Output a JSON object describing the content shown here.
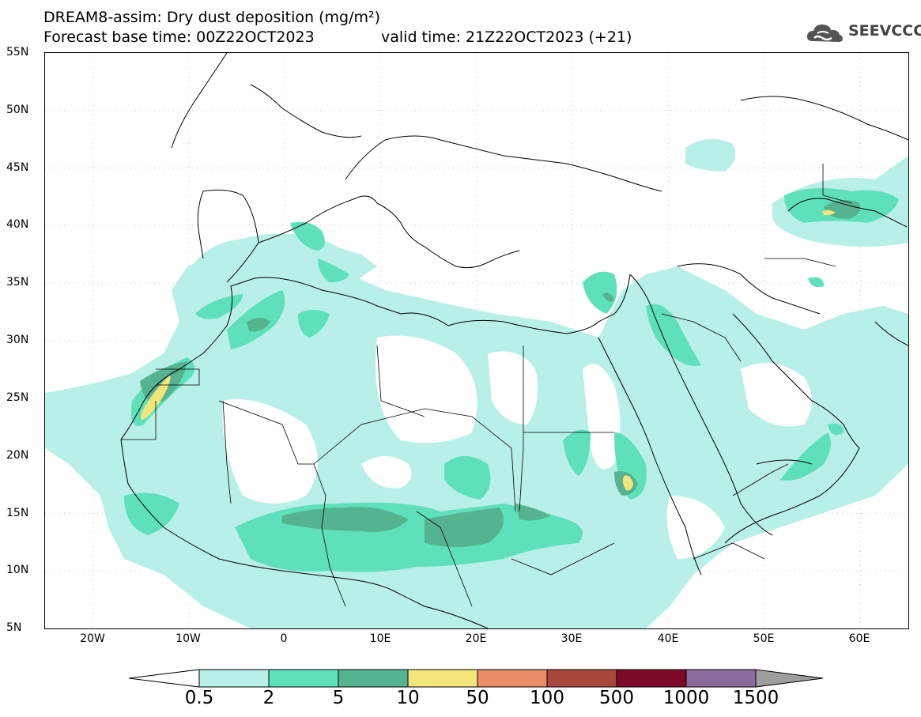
{
  "title": {
    "line1": "DREAM8-assim: Dry dust deposition (mg/m²)",
    "base_time": "Forecast base time: 00Z22OCT2023",
    "valid_time": "valid time: 21Z22OCT2023 (+21)"
  },
  "logo": {
    "text": "SEEVCCC",
    "icon": "cloud-icon"
  },
  "axes": {
    "lat_labels": [
      "55N",
      "50N",
      "45N",
      "40N",
      "35N",
      "30N",
      "25N",
      "20N",
      "15N",
      "10N",
      "5N"
    ],
    "lon_labels": [
      "20W",
      "10W",
      "0",
      "10E",
      "20E",
      "30E",
      "40E",
      "50E",
      "60E"
    ],
    "lat_range": [
      5,
      55
    ],
    "lon_range": [
      -25,
      65
    ]
  },
  "colorbar": {
    "levels": [
      "0.5",
      "2",
      "5",
      "10",
      "50",
      "100",
      "500",
      "1000",
      "1500"
    ],
    "colors": [
      "#b8efe6",
      "#5ee0bb",
      "#55b48f",
      "#f2e67a",
      "#e88d66",
      "#a8483c",
      "#7d0a28",
      "#8d6a9e"
    ],
    "below_color": "#ffffff",
    "above_color": "#9e9e9e"
  },
  "colors": {
    "light": "#b8efe6",
    "medium": "#5ee0bb",
    "dark": "#55b48f",
    "yellow": "#f2e67a",
    "coast": "#000000",
    "grid": "#bdbdbd"
  }
}
